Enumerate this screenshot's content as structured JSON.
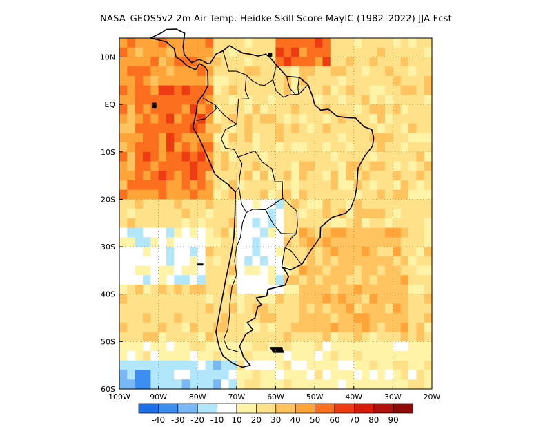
{
  "title": "NASA_GEOS5v2  2m Air Temp. Heidke Skill Score MayIC (1982–2022) JJA Fcst",
  "lat_labels": [
    "10N",
    "EQ",
    "10S",
    "20S",
    "30S",
    "40S",
    "50S",
    "60S"
  ],
  "lon_labels": [
    "100W",
    "90W",
    "80W",
    "70W",
    "60W",
    "50W",
    "40W",
    "30W",
    "20W"
  ],
  "colorbar": {
    "labels": [
      "-40",
      "-30",
      "-20",
      "-10",
      "10",
      "20",
      "30",
      "40",
      "50",
      "60",
      "70",
      "80",
      "90"
    ],
    "colors": [
      "#1f6fe6",
      "#3c8ff0",
      "#78b8f4",
      "#b2e6fb",
      "#ffffff",
      "#fff3a8",
      "#ffe18a",
      "#ffc460",
      "#ffa438",
      "#fb6f1f",
      "#ee3c12",
      "#d81c0b",
      "#b0110a",
      "#8e0b08"
    ]
  },
  "map": {
    "lon_range": [
      -100,
      -20
    ],
    "lat_range": [
      -60,
      14
    ],
    "gridlines": "dotted"
  }
}
